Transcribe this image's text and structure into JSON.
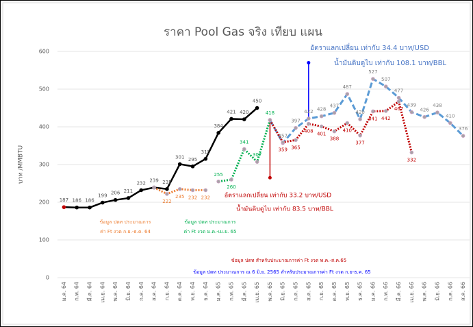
{
  "chart_data": {
    "type": "line",
    "title": "ราคา Pool Gas จริง เทียบ แผน",
    "y_label": "บาท /MMBTU",
    "categories": [
      "ม.ค. 64",
      "ก.พ. 64",
      "มี.ค. 64",
      "เม.ย. 64",
      "พ.ค. 64",
      "มิ.ย. 64",
      "ก.ค. 64",
      "ส.ค. 64",
      "ก.ย. 64",
      "ต.ค. 64",
      "พ.ย. 64",
      "ธ.ค. 64",
      "ม.ค. 65",
      "ก.พ. 65",
      "มี.ค. 65",
      "เม.ย. 65",
      "พ.ค. 65",
      "มิ.ย. 65",
      "ก.ค. 65",
      "ส.ค. 65",
      "ก.ย. 65",
      "ต.ค. 65",
      "พ.ย. 65",
      "ธ.ค. 65",
      "ม.ค. 66",
      "ก.พ. 66",
      "มี.ค. 66",
      "เม.ย. 66",
      "พ.ค. 66",
      "มิ.ย. 66",
      "ก.ค. 66",
      "ส.ค. 66"
    ],
    "ylim": [
      0,
      600
    ],
    "yticks": [
      0,
      100,
      200,
      300,
      400,
      500,
      600
    ],
    "grid": true,
    "series": [
      {
        "color": "#000000",
        "style": "solid",
        "label_color": "#555555",
        "values": [
          187,
          186,
          186,
          199,
          206,
          211,
          232,
          239,
          235,
          301,
          295,
          315,
          384,
          421,
          420,
          450,
          null,
          null,
          null,
          null,
          null,
          null,
          null,
          null,
          null,
          null,
          null,
          null,
          null,
          null,
          null,
          null
        ]
      },
      {
        "color": "#ed7d31",
        "style": "dotted",
        "label_color": "#ed7d31",
        "values": [
          null,
          null,
          null,
          null,
          null,
          null,
          null,
          239,
          222,
          235,
          232,
          232,
          null,
          null,
          null,
          null,
          null,
          null,
          null,
          null,
          null,
          null,
          null,
          null,
          null,
          null,
          null,
          null,
          null,
          null,
          null,
          null
        ]
      },
      {
        "color": "#00b050",
        "style": "dotted",
        "label_color": "#00b050",
        "values": [
          null,
          null,
          null,
          null,
          null,
          null,
          null,
          null,
          null,
          null,
          null,
          null,
          255,
          260,
          341,
          307,
          418,
          null,
          null,
          null,
          null,
          null,
          null,
          null,
          null,
          null,
          null,
          null,
          null,
          null,
          null,
          null
        ]
      },
      {
        "color": "#5b9bd5",
        "style": "dashed",
        "label_color": "#7f7f7f",
        "values": [
          null,
          null,
          null,
          null,
          null,
          null,
          null,
          null,
          null,
          null,
          null,
          null,
          null,
          null,
          null,
          null,
          418,
          357,
          397,
          422,
          428,
          437,
          487,
          420,
          527,
          507,
          477,
          439,
          426,
          438,
          410,
          376
        ]
      },
      {
        "color": "#c00000",
        "style": "dotted",
        "label_color": "#c00000",
        "values": [
          null,
          null,
          null,
          null,
          null,
          null,
          null,
          null,
          null,
          null,
          null,
          null,
          null,
          null,
          null,
          null,
          418,
          359,
          365,
          408,
          401,
          388,
          410,
          377,
          441,
          442,
          467,
          332,
          null,
          null,
          null,
          null
        ]
      }
    ],
    "pointer_lines": [
      {
        "category": 19,
        "from": 422,
        "to": 570,
        "color": "#0000ff"
      },
      {
        "category": 16,
        "from": 418,
        "to": 265,
        "color": "#c00000"
      }
    ],
    "annotations": [
      {
        "text": "อัตราแลกเปลี่ยน เท่ากับ 34.4 บาท/USD",
        "color": "#4472c4"
      },
      {
        "text": "น้ำมันดิบดูไบ เท่ากับ 108.1 บาท/BBL",
        "color": "#4472c4"
      },
      {
        "text": "อัตราแลกเปลี่ยน เท่ากับ 33.2 บาท/USD",
        "color": "#c00000"
      },
      {
        "text": "น้ำมันดิบดูไบ เท่ากับ 83.5 บาท/BBL",
        "color": "#c00000"
      },
      {
        "text": "ข้อมูล ปตท ประมาณการ",
        "color": "#ed7d31"
      },
      {
        "text": "ค่า Ft งวด ก.ย.-ธ.ค. 64",
        "color": "#ed7d31"
      },
      {
        "text": "ข้อมูล ปตท ประมาณการ",
        "color": "#00b050"
      },
      {
        "text": "ค่า Ft งวด ม.ค.-เม.ย. 65",
        "color": "#00b050"
      },
      {
        "text": "ข้อมูล ปตท สำหรับประมาณการค่า Ft งวด พ.ค.-ส.ค.65",
        "color": "#c00000"
      },
      {
        "text": "ข้อมูล ปตท ประมาณการ ณ 6 มิ.ย. 2565 สำหรับประมาณการค่า Ft งวด ก.ย-ธ.ค. 65",
        "color": "#0000ff"
      }
    ]
  }
}
